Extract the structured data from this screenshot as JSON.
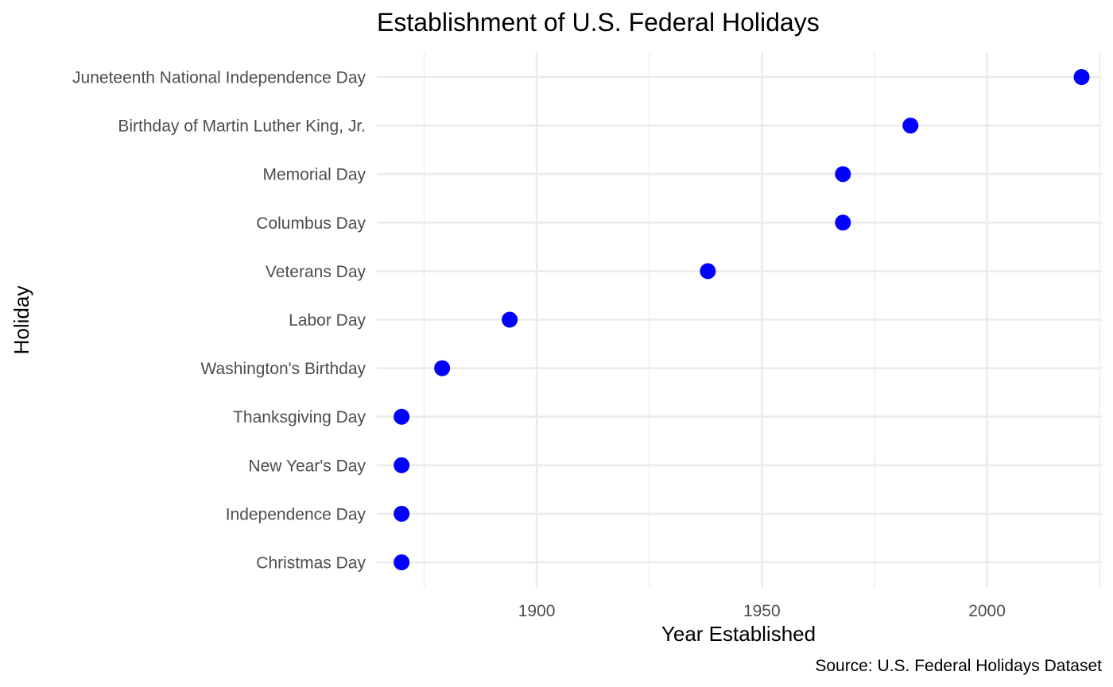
{
  "chart_data": {
    "type": "scatter",
    "title": "Establishment of U.S. Federal Holidays",
    "xlabel": "Year Established",
    "ylabel": "Holiday",
    "caption": "Source: U.S. Federal Holidays Dataset",
    "xlim": [
      1864.5,
      2025.5
    ],
    "x_major_ticks": [
      1900,
      1950,
      2000
    ],
    "x_minor_ticks": [
      1875,
      1925,
      1975,
      2025
    ],
    "grid": true,
    "legend": "none",
    "point_color": "#0000ff",
    "categories": [
      "Christmas Day",
      "Independence Day",
      "New Year's Day",
      "Thanksgiving Day",
      "Washington's Birthday",
      "Labor Day",
      "Veterans Day",
      "Columbus Day",
      "Memorial Day",
      "Birthday of Martin Luther King, Jr.",
      "Juneteenth National Independence Day"
    ],
    "values": [
      1870,
      1870,
      1870,
      1870,
      1879,
      1894,
      1938,
      1968,
      1968,
      1983,
      2021
    ]
  }
}
